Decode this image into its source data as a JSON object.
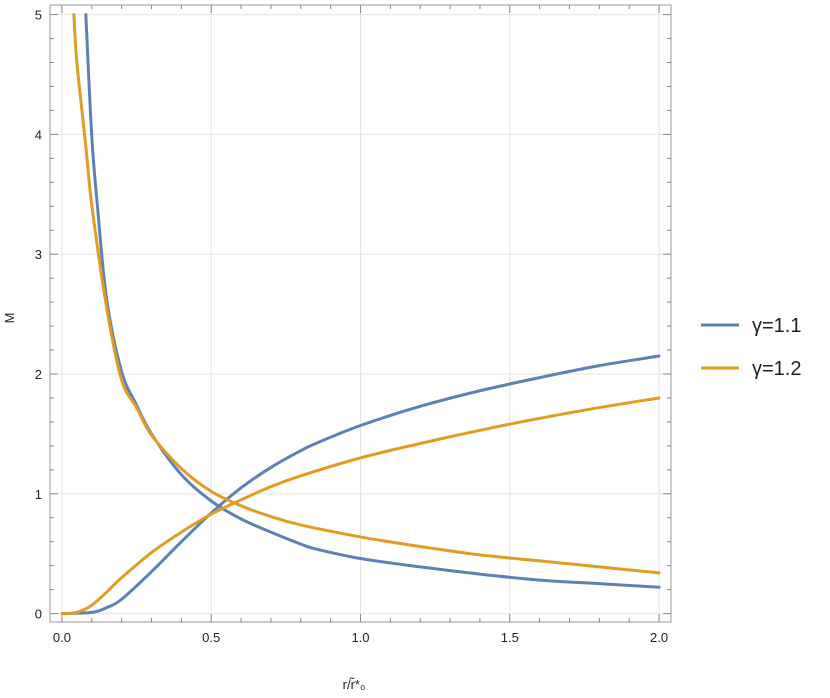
{
  "chart_data": {
    "type": "line",
    "xlabel": "r/r̃*₀",
    "ylabel": "M",
    "xlim": [
      -0.04,
      2.04
    ],
    "ylim": [
      -0.07,
      5.08
    ],
    "x_ticks": [
      "0.0",
      "0.5",
      "1.0",
      "1.5",
      "2.0"
    ],
    "y_ticks": [
      "0",
      "1",
      "2",
      "3",
      "4",
      "5"
    ],
    "grid": true,
    "legend_placement": "right",
    "series": [
      {
        "name": "γ=1.1",
        "color": "#5e81b5",
        "curves": [
          {
            "x": [
              0.08,
              0.1,
              0.12,
              0.15,
              0.2,
              0.25,
              0.3,
              0.4,
              0.5,
              0.6,
              0.7,
              0.8,
              0.85,
              1.0,
              1.2,
              1.4,
              1.6,
              1.8,
              2.0
            ],
            "y": [
              5.0,
              3.98,
              3.37,
              2.62,
              2.02,
              1.74,
              1.5,
              1.16,
              0.94,
              0.79,
              0.68,
              0.58,
              0.54,
              0.46,
              0.39,
              0.33,
              0.28,
              0.25,
              0.22
            ]
          },
          {
            "x": [
              0.0,
              0.1,
              0.15,
              0.2,
              0.3,
              0.4,
              0.5,
              0.6,
              0.7,
              0.8,
              0.85,
              1.0,
              1.2,
              1.4,
              1.6,
              1.8,
              2.0
            ],
            "y": [
              0.0,
              0.01,
              0.05,
              0.12,
              0.35,
              0.6,
              0.84,
              1.05,
              1.22,
              1.36,
              1.42,
              1.57,
              1.73,
              1.86,
              1.97,
              2.07,
              2.15
            ]
          }
        ]
      },
      {
        "name": "γ=1.2",
        "color": "#e19c24",
        "curves": [
          {
            "x": [
              0.04,
              0.05,
              0.08,
              0.1,
              0.15,
              0.2,
              0.25,
              0.3,
              0.4,
              0.5,
              0.6,
              0.7,
              0.8,
              1.0,
              1.2,
              1.4,
              1.6,
              1.8,
              2.0
            ],
            "y": [
              5.0,
              4.6,
              3.9,
              3.41,
              2.55,
              1.95,
              1.72,
              1.49,
              1.21,
              1.02,
              0.9,
              0.81,
              0.74,
              0.64,
              0.56,
              0.49,
              0.44,
              0.39,
              0.34
            ]
          },
          {
            "x": [
              0.0,
              0.05,
              0.1,
              0.15,
              0.2,
              0.3,
              0.4,
              0.5,
              0.6,
              0.7,
              0.8,
              1.0,
              1.2,
              1.4,
              1.6,
              1.8,
              2.0
            ],
            "y": [
              0.0,
              0.01,
              0.07,
              0.18,
              0.3,
              0.51,
              0.68,
              0.83,
              0.95,
              1.06,
              1.15,
              1.3,
              1.42,
              1.53,
              1.63,
              1.72,
              1.8
            ]
          }
        ]
      }
    ]
  }
}
